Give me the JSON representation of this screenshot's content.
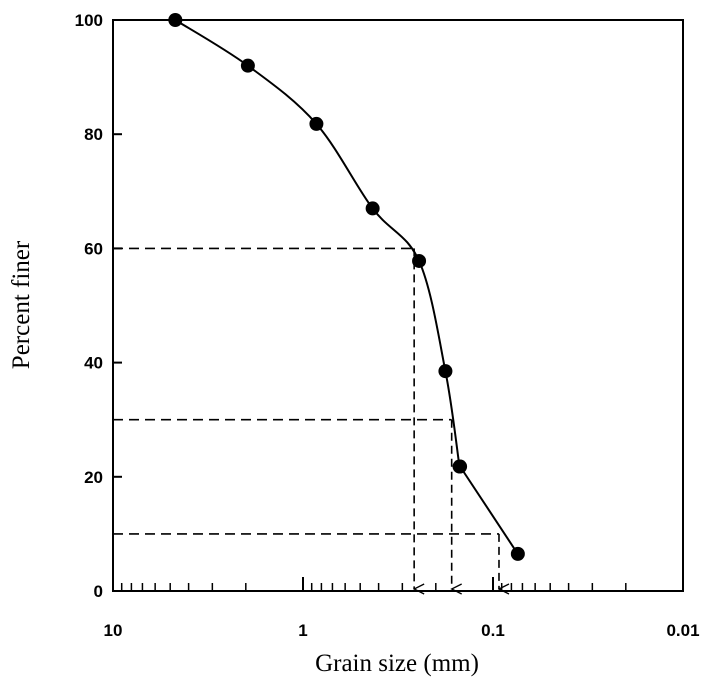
{
  "chart_data": {
    "type": "line",
    "xlabel": "Grain size (mm)",
    "ylabel": "Percent finer",
    "x_scale": "log",
    "x_reversed": true,
    "xlim": [
      10,
      0.01
    ],
    "ylim": [
      0,
      100
    ],
    "x_ticks": [
      10,
      1,
      0.1,
      0.01
    ],
    "x_tick_labels": [
      "10",
      "1",
      "0.1",
      "0.01"
    ],
    "y_ticks": [
      0,
      20,
      40,
      60,
      80,
      100
    ],
    "y_tick_labels": [
      "0",
      "20",
      "40",
      "60",
      "80",
      "100"
    ],
    "grid": false,
    "series": [
      {
        "x": [
          4.7,
          1.95,
          0.85,
          0.43,
          0.245,
          0.178,
          0.15,
          0.149,
          0.074
        ],
        "y": [
          100,
          92,
          81.8,
          67,
          57.8,
          38.5,
          21.8,
          21.8,
          6.5
        ],
        "color": "#000000",
        "marker": "circle"
      }
    ],
    "reference_lines": [
      {
        "y": 60,
        "x": 0.26
      },
      {
        "y": 30,
        "x": 0.165
      },
      {
        "y": 10,
        "x": 0.093
      }
    ]
  }
}
